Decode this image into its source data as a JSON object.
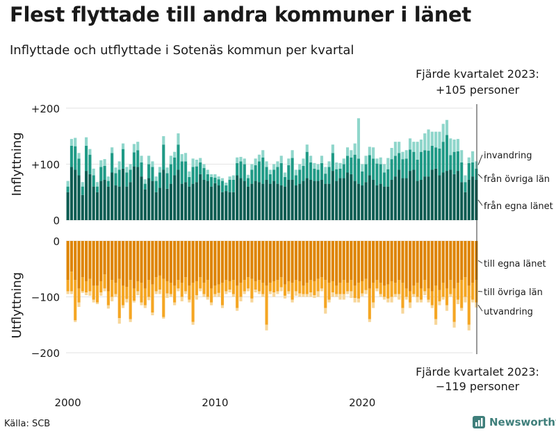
{
  "title": "Flest flyttade till andra kommuner i länet",
  "subtitle": "Inflyttade och utflyttade i Sotenäs kommun per kvartal",
  "source": "Källa: SCB",
  "brand": "Newsworthy",
  "colors": {
    "in_local": "#0c5c52",
    "in_other": "#1f9a86",
    "in_immigration": "#8fd6cb",
    "out_local": "#de8400",
    "out_other": "#f5a623",
    "out_emigration": "#f7d699",
    "grid": "#e2e2e2",
    "text": "#1a1a1a"
  },
  "chart_data": {
    "type": "bar",
    "stacked": true,
    "x_ticks": [
      "2000",
      "2010",
      "2020"
    ],
    "callout_top": [
      "Fjärde kvartalet 2023:",
      "+105 personer"
    ],
    "callout_bottom": [
      "Fjärde kvartalet 2023:",
      "−119 personer"
    ],
    "inflow": {
      "ylabel": "Inflyttning",
      "ylim": [
        0,
        205
      ],
      "yticks": [
        {
          "value": 0,
          "label": "0"
        },
        {
          "value": 100,
          "label": "+100"
        },
        {
          "value": 200,
          "label": "+200"
        }
      ],
      "series": [
        {
          "name": "från egna länet",
          "values": [
            50,
            95,
            90,
            80,
            45,
            88,
            82,
            60,
            50,
            70,
            72,
            60,
            85,
            62,
            60,
            92,
            60,
            68,
            96,
            95,
            78,
            55,
            75,
            70,
            50,
            58,
            90,
            56,
            65,
            80,
            90,
            65,
            68,
            60,
            65,
            68,
            82,
            72,
            70,
            60,
            66,
            62,
            50,
            52,
            50,
            50,
            80,
            75,
            70,
            60,
            65,
            70,
            68,
            65,
            72,
            65,
            70,
            65,
            62,
            60,
            72,
            72,
            62,
            65,
            70,
            75,
            72,
            70,
            70,
            72,
            65,
            65,
            88,
            70,
            75,
            75,
            85,
            82,
            70,
            65,
            62,
            68,
            80,
            72,
            62,
            65,
            60,
            60,
            72,
            78,
            90,
            75,
            75,
            88,
            90,
            70,
            72,
            78,
            78,
            90,
            92,
            80,
            85,
            88,
            90,
            82,
            88,
            68,
            50,
            72,
            78,
            72
          ]
        },
        {
          "name": "från övriga län",
          "values": [
            10,
            38,
            42,
            30,
            15,
            45,
            35,
            20,
            10,
            25,
            25,
            10,
            35,
            22,
            30,
            35,
            25,
            22,
            25,
            30,
            25,
            10,
            25,
            25,
            20,
            27,
            45,
            28,
            35,
            32,
            45,
            40,
            37,
            17,
            30,
            28,
            21,
            21,
            12,
            17,
            10,
            11,
            20,
            10,
            22,
            22,
            22,
            30,
            30,
            15,
            25,
            28,
            37,
            47,
            23,
            17,
            20,
            30,
            40,
            17,
            26,
            39,
            18,
            25,
            27,
            47,
            31,
            22,
            20,
            30,
            18,
            30,
            32,
            21,
            17,
            25,
            30,
            30,
            47,
            45,
            25,
            32,
            36,
            38,
            39,
            35,
            25,
            31,
            37,
            37,
            30,
            34,
            35,
            38,
            32,
            38,
            50,
            47,
            46,
            43,
            38,
            48,
            55,
            64,
            26,
            40,
            35,
            35,
            18,
            30,
            25,
            20
          ]
        },
        {
          "name": "invandring",
          "values": [
            10,
            12,
            15,
            10,
            8,
            15,
            10,
            12,
            8,
            12,
            12,
            8,
            10,
            10,
            15,
            10,
            10,
            10,
            15,
            15,
            12,
            8,
            15,
            10,
            8,
            10,
            15,
            10,
            15,
            10,
            20,
            13,
            15,
            10,
            15,
            12,
            8,
            7,
            8,
            5,
            6,
            5,
            5,
            5,
            6,
            8,
            10,
            8,
            10,
            6,
            10,
            12,
            12,
            13,
            10,
            8,
            10,
            10,
            13,
            8,
            12,
            14,
            10,
            10,
            13,
            13,
            12,
            10,
            10,
            13,
            12,
            10,
            15,
            12,
            10,
            10,
            15,
            13,
            20,
            72,
            13,
            15,
            15,
            20,
            9,
            12,
            15,
            20,
            20,
            25,
            20,
            13,
            15,
            20,
            18,
            32,
            22,
            30,
            38,
            25,
            28,
            30,
            32,
            27,
            30,
            22,
            22,
            22,
            12,
            10,
            20,
            13
          ]
        }
      ]
    },
    "outflow": {
      "ylabel": "Utflyttning",
      "ylim": [
        -200,
        0
      ],
      "yticks": [
        {
          "value": 0,
          "label": "0"
        },
        {
          "value": -100,
          "label": "−100"
        },
        {
          "value": -200,
          "label": "−200"
        }
      ],
      "series": [
        {
          "name": "till egna länet",
          "values": [
            70,
            55,
            70,
            85,
            65,
            72,
            68,
            80,
            80,
            72,
            60,
            90,
            70,
            75,
            68,
            80,
            82,
            70,
            85,
            72,
            75,
            85,
            70,
            78,
            65,
            62,
            68,
            72,
            75,
            80,
            70,
            75,
            65,
            80,
            75,
            72,
            65,
            75,
            70,
            85,
            80,
            78,
            75,
            70,
            72,
            70,
            80,
            75,
            70,
            65,
            68,
            72,
            70,
            75,
            80,
            75,
            72,
            70,
            65,
            78,
            72,
            75,
            70,
            72,
            80,
            75,
            70,
            72,
            68,
            65,
            70,
            75,
            72,
            80,
            75,
            70,
            75,
            70,
            80,
            75,
            72,
            68,
            85,
            75,
            70,
            75,
            80,
            78,
            72,
            75,
            70,
            75,
            85,
            90,
            80,
            75,
            85,
            70,
            85,
            90,
            80,
            88,
            75,
            85,
            70,
            85,
            75,
            70,
            65,
            80,
            75,
            70
          ]
        },
        {
          "name": "till övriga län",
          "values": [
            20,
            35,
            72,
            25,
            25,
            20,
            22,
            25,
            30,
            20,
            25,
            25,
            30,
            20,
            70,
            35,
            22,
            70,
            22,
            18,
            35,
            30,
            30,
            50,
            25,
            25,
            68,
            22,
            20,
            30,
            15,
            25,
            25,
            25,
            70,
            25,
            20,
            20,
            30,
            25,
            15,
            15,
            40,
            20,
            15,
            25,
            40,
            25,
            20,
            20,
            35,
            15,
            20,
            20,
            70,
            15,
            20,
            20,
            18,
            20,
            18,
            30,
            20,
            22,
            15,
            20,
            22,
            25,
            22,
            20,
            50,
            30,
            20,
            15,
            20,
            25,
            15,
            20,
            22,
            28,
            22,
            20,
            55,
            35,
            15,
            20,
            20,
            25,
            28,
            20,
            25,
            45,
            15,
            20,
            15,
            25,
            20,
            20,
            20,
            25,
            60,
            20,
            25,
            30,
            25,
            60,
            30,
            50,
            35,
            70,
            30,
            40
          ]
        },
        {
          "name": "utvandring",
          "values": [
            5,
            5,
            3,
            8,
            3,
            5,
            8,
            5,
            3,
            6,
            5,
            6,
            8,
            5,
            10,
            5,
            6,
            5,
            3,
            7,
            5,
            5,
            6,
            5,
            5,
            8,
            3,
            8,
            5,
            5,
            5,
            8,
            5,
            5,
            5,
            8,
            5,
            5,
            5,
            5,
            5,
            7,
            5,
            5,
            5,
            5,
            5,
            8,
            5,
            5,
            7,
            5,
            5,
            5,
            10,
            5,
            8,
            5,
            7,
            5,
            5,
            5,
            8,
            6,
            5,
            5,
            8,
            5,
            10,
            5,
            10,
            5,
            8,
            5,
            10,
            10,
            5,
            12,
            8,
            7,
            5,
            7,
            5,
            10,
            5,
            5,
            5,
            7,
            10,
            5,
            10,
            10,
            5,
            10,
            5,
            10,
            5,
            7,
            5,
            5,
            10,
            7,
            5,
            10,
            5,
            10,
            8,
            5,
            10,
            10,
            5,
            9
          ]
        }
      ]
    }
  }
}
